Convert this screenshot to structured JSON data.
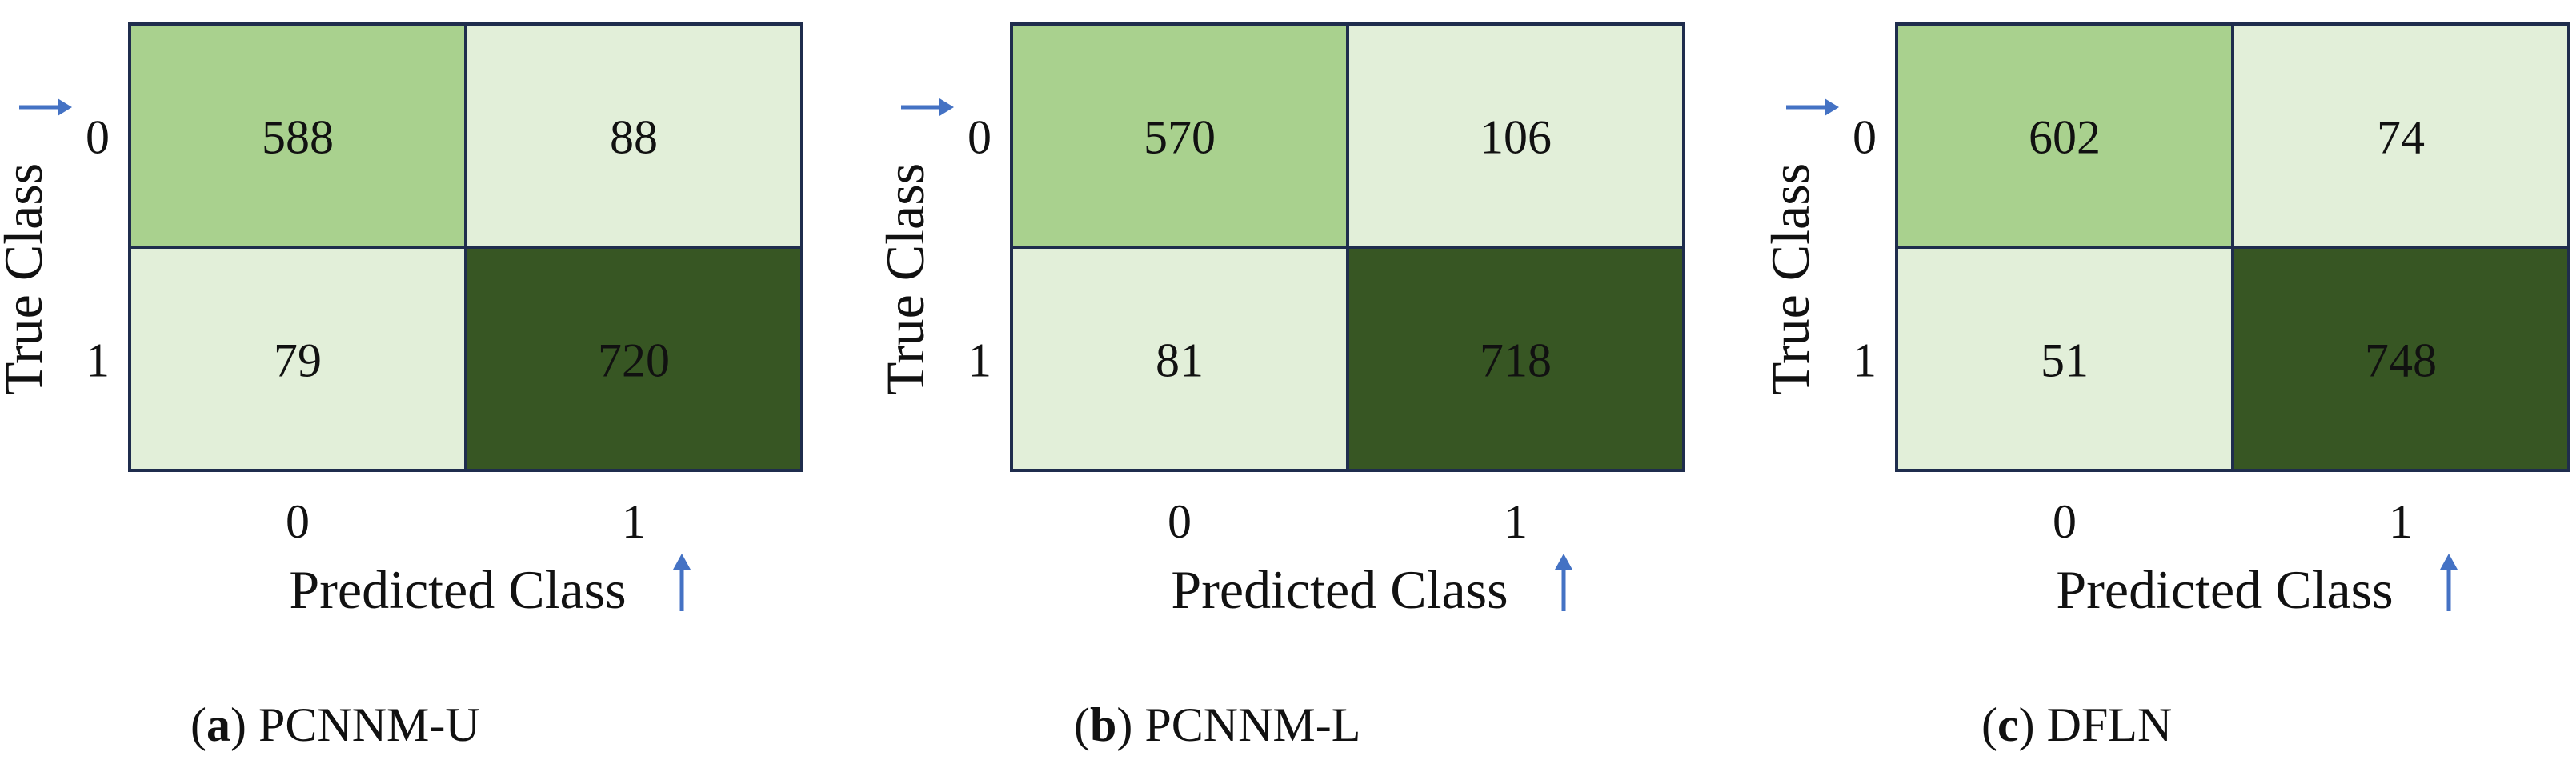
{
  "chart_data": [
    {
      "type": "heatmap",
      "title": "",
      "xlabel": "Predicted Class",
      "ylabel": "True Class",
      "x_categories": [
        "0",
        "1"
      ],
      "y_categories": [
        "0",
        "1"
      ],
      "values": [
        [
          588,
          88
        ],
        [
          79,
          720
        ]
      ],
      "colors": [
        [
          "#a9d18e",
          "#e2efd9"
        ],
        [
          "#e2efd9",
          "#375623"
        ]
      ],
      "caption": {
        "letter": "a",
        "text": "PCNNM-U"
      }
    },
    {
      "type": "heatmap",
      "title": "",
      "xlabel": "Predicted Class",
      "ylabel": "True Class",
      "x_categories": [
        "0",
        "1"
      ],
      "y_categories": [
        "0",
        "1"
      ],
      "values": [
        [
          570,
          106
        ],
        [
          81,
          718
        ]
      ],
      "colors": [
        [
          "#a9d18e",
          "#e2efd9"
        ],
        [
          "#e2efd9",
          "#375623"
        ]
      ],
      "caption": {
        "letter": "b",
        "text": "PCNNM-L"
      }
    },
    {
      "type": "heatmap",
      "title": "",
      "xlabel": "Predicted Class",
      "ylabel": "True Class",
      "x_categories": [
        "0",
        "1"
      ],
      "y_categories": [
        "0",
        "1"
      ],
      "values": [
        [
          602,
          74
        ],
        [
          51,
          748
        ]
      ],
      "colors": [
        [
          "#a9d18e",
          "#e2efd9"
        ],
        [
          "#e2efd9",
          "#375623"
        ]
      ],
      "caption": {
        "letter": "c",
        "text": "DFLN"
      }
    }
  ],
  "style": {
    "border_color": "#1f2d4d",
    "arrow_color": "#4472c4",
    "text_color": "#111111",
    "arrow_right_icon": "arrow-right-icon",
    "arrow_up_icon": "arrow-up-icon"
  }
}
